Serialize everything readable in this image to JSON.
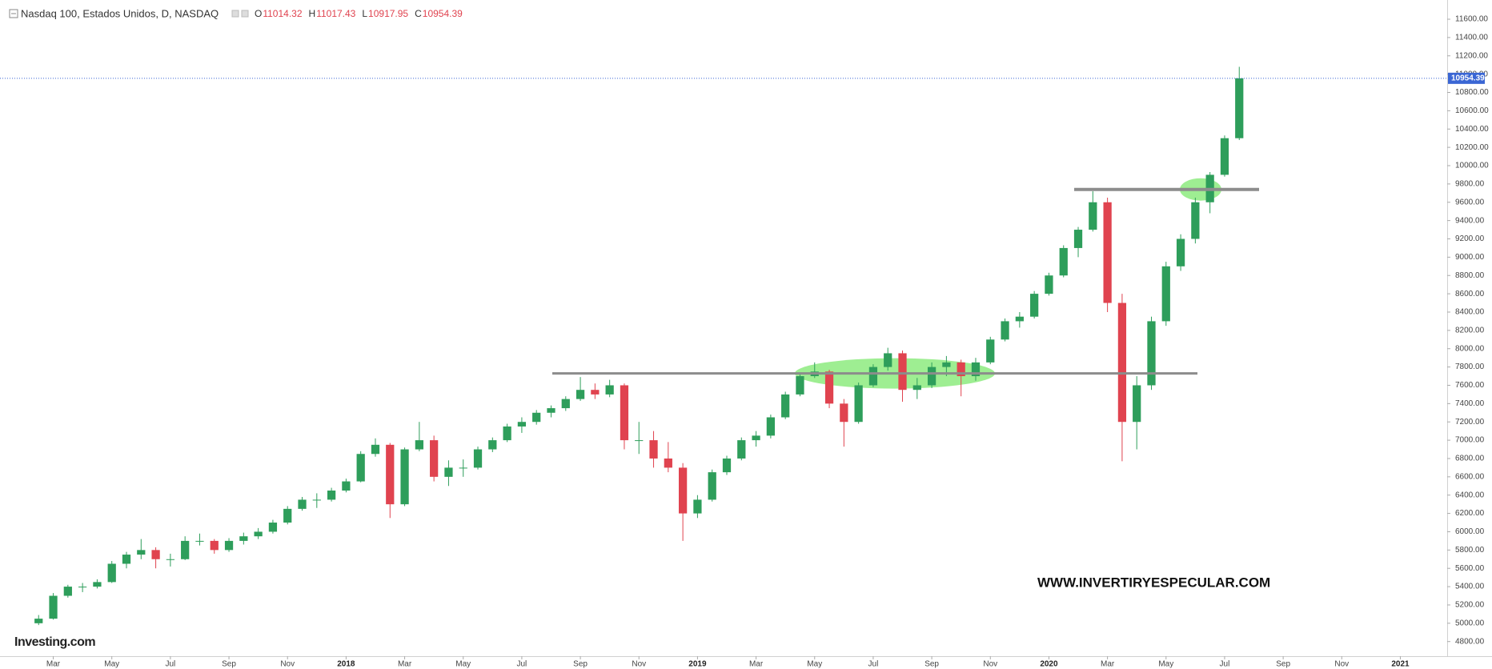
{
  "chart_data": {
    "type": "candlestick",
    "title": "Nasdaq 100, Estados Unidos, D, NASDAQ",
    "header_labels": [
      "O",
      "H",
      "L",
      "C"
    ],
    "header_values": [
      11014.32,
      11017.43,
      10917.95,
      10954.39
    ],
    "watermark": "WWW.INVERTIRYESPECULAR.COM",
    "logo": "Investing.com",
    "up_color": "#2e9e5b",
    "down_color": "#e0434f",
    "level_color": "#8c8c8c",
    "zone_color": "#7de86d",
    "price_line_color": "#3a66d4",
    "levels": [
      7730,
      9740
    ],
    "grid": false,
    "xlim": [
      0.4,
      49.6
    ],
    "xticks": [
      {
        "value": 2,
        "label": "Mar"
      },
      {
        "value": 4,
        "label": "May"
      },
      {
        "value": 6,
        "label": "Jul"
      },
      {
        "value": 8,
        "label": "Sep"
      },
      {
        "value": 10,
        "label": "Nov"
      },
      {
        "value": 12,
        "label": "2018"
      },
      {
        "value": 14,
        "label": "Mar"
      },
      {
        "value": 16,
        "label": "May"
      },
      {
        "value": 18,
        "label": "Jul"
      },
      {
        "value": 20,
        "label": "Sep"
      },
      {
        "value": 22,
        "label": "Nov"
      },
      {
        "value": 24,
        "label": "2019"
      },
      {
        "value": 26,
        "label": "Mar"
      },
      {
        "value": 28,
        "label": "May"
      },
      {
        "value": 30,
        "label": "Jul"
      },
      {
        "value": 32,
        "label": "Sep"
      },
      {
        "value": 34,
        "label": "Nov"
      },
      {
        "value": 36,
        "label": "2020"
      },
      {
        "value": 38,
        "label": "Mar"
      },
      {
        "value": 40,
        "label": "May"
      },
      {
        "value": 42,
        "label": "Jul"
      },
      {
        "value": 44,
        "label": "Sep"
      },
      {
        "value": 46,
        "label": "Nov"
      },
      {
        "value": 48,
        "label": "2021"
      }
    ],
    "ylim": [
      4640,
      11810
    ],
    "yticks": [
      {
        "value": 4800,
        "label": "4800.00"
      },
      {
        "value": 5000,
        "label": "5000.00"
      },
      {
        "value": 5200,
        "label": "5200.00"
      },
      {
        "value": 5400,
        "label": "5400.00"
      },
      {
        "value": 5600,
        "label": "5600.00"
      },
      {
        "value": 5800,
        "label": "5800.00"
      },
      {
        "value": 6000,
        "label": "6000.00"
      },
      {
        "value": 6200,
        "label": "6200.00"
      },
      {
        "value": 6400,
        "label": "6400.00"
      },
      {
        "value": 6600,
        "label": "6600.00"
      },
      {
        "value": 6800,
        "label": "6800.00"
      },
      {
        "value": 7000,
        "label": "7000.00"
      },
      {
        "value": 7200,
        "label": "7200.00"
      },
      {
        "value": 7400,
        "label": "7400.00"
      },
      {
        "value": 7600,
        "label": "7600.00"
      },
      {
        "value": 7800,
        "label": "7800.00"
      },
      {
        "value": 8000,
        "label": "8000.00"
      },
      {
        "value": 8200,
        "label": "8200.00"
      },
      {
        "value": 8400,
        "label": "8400.00"
      },
      {
        "value": 8600,
        "label": "8600.00"
      },
      {
        "value": 8800,
        "label": "8800.00"
      },
      {
        "value": 9000,
        "label": "9000.00"
      },
      {
        "value": 9200,
        "label": "9200.00"
      },
      {
        "value": 9400,
        "label": "9400.00"
      },
      {
        "value": 9600,
        "label": "9600.00"
      },
      {
        "value": 9800,
        "label": "9800.00"
      },
      {
        "value": 10000,
        "label": "10000.00"
      },
      {
        "value": 10200,
        "label": "10200.00"
      },
      {
        "value": 10400,
        "label": "10400.00"
      },
      {
        "value": 10600,
        "label": "10600.00"
      },
      {
        "value": 10800,
        "label": "10800.00"
      },
      {
        "value": 11000,
        "label": "11000.00"
      },
      {
        "value": 11200,
        "label": "11200.00"
      },
      {
        "value": 11400,
        "label": "11400.00"
      },
      {
        "value": 11600,
        "label": "11600.00"
      }
    ],
    "x": [
      1.5,
      2,
      2.5,
      3,
      3.5,
      4,
      4.5,
      5,
      5.5,
      6,
      6.5,
      7,
      7.5,
      8,
      8.5,
      9,
      9.5,
      10,
      10.5,
      11,
      11.5,
      12,
      12.5,
      13,
      13.5,
      14,
      14.5,
      15,
      15.5,
      16,
      16.5,
      17,
      17.5,
      18,
      18.5,
      19,
      19.5,
      20,
      20.5,
      21,
      21.5,
      22,
      22.5,
      23,
      23.5,
      24,
      24.5,
      25,
      25.5,
      26,
      26.5,
      27,
      27.5,
      28,
      28.5,
      29,
      29.5,
      30,
      30.5,
      31,
      31.5,
      32,
      32.5,
      33,
      33.5,
      34,
      34.5,
      35,
      35.5,
      36,
      36.5,
      37,
      37.5,
      38,
      38.5,
      39,
      39.5,
      40,
      40.5,
      41,
      41.5,
      42,
      42.5
    ],
    "ohlc": [
      [
        5000,
        5090,
        4980,
        5050
      ],
      [
        5050,
        5330,
        5040,
        5300
      ],
      [
        5300,
        5420,
        5280,
        5400
      ],
      [
        5400,
        5440,
        5340,
        5400
      ],
      [
        5400,
        5480,
        5380,
        5450
      ],
      [
        5450,
        5680,
        5440,
        5650
      ],
      [
        5650,
        5780,
        5600,
        5750
      ],
      [
        5750,
        5920,
        5700,
        5800
      ],
      [
        5800,
        5830,
        5600,
        5700
      ],
      [
        5700,
        5760,
        5620,
        5700
      ],
      [
        5700,
        5950,
        5690,
        5900
      ],
      [
        5900,
        5980,
        5850,
        5900
      ],
      [
        5900,
        5920,
        5760,
        5800
      ],
      [
        5800,
        5930,
        5780,
        5900
      ],
      [
        5900,
        5990,
        5860,
        5950
      ],
      [
        5950,
        6040,
        5920,
        6000
      ],
      [
        6000,
        6130,
        5980,
        6100
      ],
      [
        6100,
        6280,
        6080,
        6250
      ],
      [
        6250,
        6380,
        6230,
        6350
      ],
      [
        6350,
        6420,
        6260,
        6350
      ],
      [
        6350,
        6480,
        6330,
        6450
      ],
      [
        6450,
        6580,
        6430,
        6550
      ],
      [
        6550,
        6880,
        6540,
        6850
      ],
      [
        6850,
        7020,
        6820,
        6950
      ],
      [
        6950,
        6970,
        6150,
        6300
      ],
      [
        6300,
        6920,
        6280,
        6900
      ],
      [
        6900,
        7200,
        6880,
        7000
      ],
      [
        7000,
        7050,
        6550,
        6600
      ],
      [
        6600,
        6780,
        6500,
        6700
      ],
      [
        6700,
        6790,
        6600,
        6700
      ],
      [
        6700,
        6930,
        6680,
        6900
      ],
      [
        6900,
        7030,
        6870,
        7000
      ],
      [
        7000,
        7180,
        6980,
        7150
      ],
      [
        7150,
        7250,
        7080,
        7200
      ],
      [
        7200,
        7330,
        7170,
        7300
      ],
      [
        7300,
        7380,
        7250,
        7350
      ],
      [
        7350,
        7480,
        7320,
        7450
      ],
      [
        7450,
        7690,
        7430,
        7550
      ],
      [
        7550,
        7620,
        7450,
        7500
      ],
      [
        7500,
        7660,
        7470,
        7600
      ],
      [
        7600,
        7620,
        6900,
        7000
      ],
      [
        7000,
        7200,
        6850,
        7000
      ],
      [
        7000,
        7100,
        6700,
        6800
      ],
      [
        6800,
        6980,
        6650,
        6700
      ],
      [
        6700,
        6750,
        5900,
        6200
      ],
      [
        6200,
        6400,
        6150,
        6350
      ],
      [
        6350,
        6680,
        6330,
        6650
      ],
      [
        6650,
        6830,
        6620,
        6800
      ],
      [
        6800,
        7030,
        6780,
        7000
      ],
      [
        7000,
        7100,
        6930,
        7050
      ],
      [
        7050,
        7280,
        7020,
        7250
      ],
      [
        7250,
        7530,
        7230,
        7500
      ],
      [
        7500,
        7730,
        7480,
        7700
      ],
      [
        7700,
        7850,
        7680,
        7750
      ],
      [
        7750,
        7770,
        7350,
        7400
      ],
      [
        7400,
        7450,
        6930,
        7200
      ],
      [
        7200,
        7630,
        7180,
        7600
      ],
      [
        7600,
        7830,
        7580,
        7800
      ],
      [
        7800,
        8010,
        7760,
        7950
      ],
      [
        7950,
        7980,
        7420,
        7550
      ],
      [
        7550,
        7680,
        7450,
        7600
      ],
      [
        7600,
        7850,
        7570,
        7800
      ],
      [
        7800,
        7920,
        7700,
        7850
      ],
      [
        7850,
        7880,
        7480,
        7700
      ],
      [
        7700,
        7900,
        7650,
        7850
      ],
      [
        7850,
        8130,
        7830,
        8100
      ],
      [
        8100,
        8330,
        8080,
        8300
      ],
      [
        8300,
        8400,
        8230,
        8350
      ],
      [
        8350,
        8630,
        8330,
        8600
      ],
      [
        8600,
        8830,
        8580,
        8800
      ],
      [
        8800,
        9130,
        8780,
        9100
      ],
      [
        9100,
        9330,
        9000,
        9300
      ],
      [
        9300,
        9720,
        9280,
        9600
      ],
      [
        9600,
        9650,
        8400,
        8500
      ],
      [
        8500,
        8600,
        6770,
        7200
      ],
      [
        7200,
        7700,
        6900,
        7600
      ],
      [
        7600,
        8350,
        7550,
        8300
      ],
      [
        8300,
        8950,
        8250,
        8900
      ],
      [
        8900,
        9250,
        8850,
        9200
      ],
      [
        9200,
        9650,
        9150,
        9600
      ],
      [
        9600,
        9930,
        9480,
        9900
      ],
      [
        9900,
        10330,
        9880,
        10300
      ],
      [
        10300,
        11080,
        10280,
        10954.39
      ]
    ]
  }
}
